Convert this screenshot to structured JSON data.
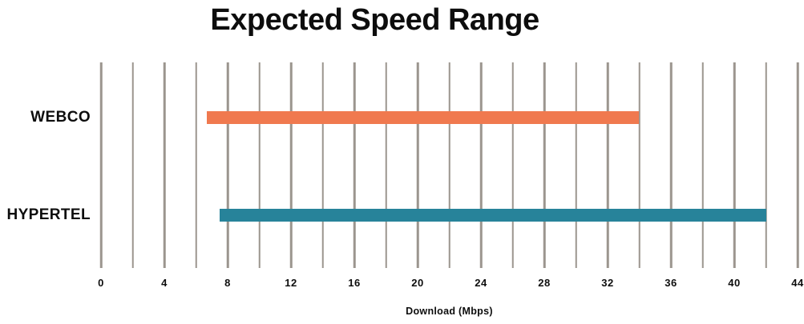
{
  "title": "Expected Speed Range",
  "chart_data": {
    "type": "bar",
    "orientation": "horizontal",
    "title": "Expected Speed Range",
    "categories": [
      "WEBCO",
      "HYPERTEL"
    ],
    "series": [
      {
        "name": "WEBCO",
        "range_mbps": [
          6.7,
          34
        ],
        "color": "#f0794f"
      },
      {
        "name": "HYPERTEL",
        "range_mbps": [
          7.5,
          42
        ],
        "color": "#27839a"
      }
    ],
    "xlabel": "Download (Mbps)",
    "xlim": [
      0,
      44
    ],
    "x_tick_step": 4,
    "x_grid_step": 2,
    "x_tick_labels": [
      "0",
      "4",
      "8",
      "12",
      "16",
      "20",
      "24",
      "28",
      "32",
      "36",
      "40",
      "44"
    ],
    "grid": true,
    "grid_color": "#9b958e",
    "legend": "none",
    "background": "#ffffff",
    "text_color": "#0d0d0d"
  }
}
